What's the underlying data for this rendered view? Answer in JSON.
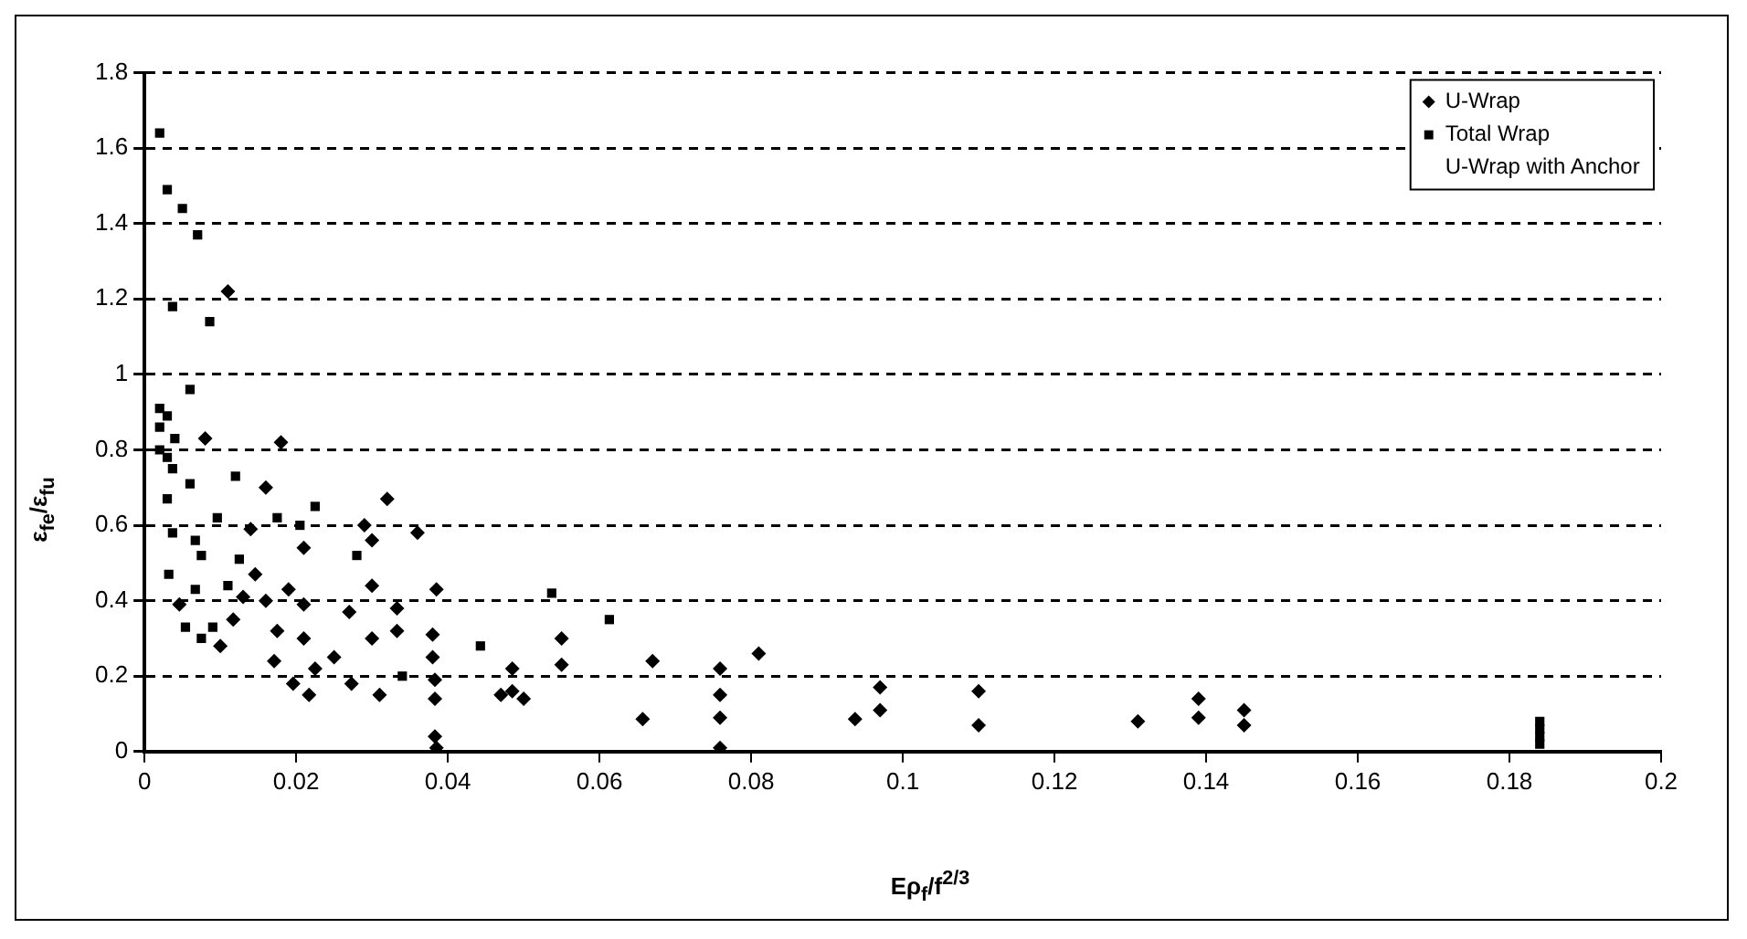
{
  "chart_data": {
    "type": "scatter",
    "xlabel": "Eρ$_{f}$/f$^{2/3}$",
    "ylabel": "ε$_{fe}$/ε$_{fu}$",
    "xlim": [
      0,
      0.2
    ],
    "xticks": [
      0,
      0.02,
      0.04,
      0.06,
      0.08,
      0.1,
      0.12,
      0.14,
      0.16,
      0.18,
      0.2
    ],
    "ylim": [
      0,
      1.8
    ],
    "yticks": [
      0,
      0.2,
      0.4,
      0.6,
      0.8,
      1,
      1.2,
      1.4,
      1.6,
      1.8
    ],
    "grid": "y",
    "legend": "top right",
    "series": [
      {
        "name": "U-Wrap",
        "color": "#000000",
        "marker": "diamond",
        "x": [
          0.011,
          0.008,
          0.018,
          0.016,
          0.014,
          0.021,
          0.029,
          0.03,
          0.032,
          0.036,
          0.0146,
          0.03,
          0.0385,
          0.013,
          0.016,
          0.019,
          0.021,
          0.0046,
          0.0117,
          0.01,
          0.0175,
          0.021,
          0.027,
          0.03,
          0.0333,
          0.0333,
          0.038,
          0.0171,
          0.0196,
          0.0217,
          0.0225,
          0.025,
          0.0273,
          0.031,
          0.038,
          0.0383,
          0.0383,
          0.0383,
          0.0385,
          0.0485,
          0.047,
          0.05,
          0.0485,
          0.055,
          0.055,
          0.067,
          0.0657,
          0.0759,
          0.0759,
          0.0759,
          0.0759,
          0.081,
          0.0937,
          0.097,
          0.097,
          0.11,
          0.11,
          0.131,
          0.139,
          0.139,
          0.145,
          0.145
        ],
        "values": [
          1.22,
          0.83,
          0.82,
          0.7,
          0.59,
          0.54,
          0.6,
          0.56,
          0.67,
          0.58,
          0.47,
          0.44,
          0.43,
          0.41,
          0.4,
          0.43,
          0.39,
          0.39,
          0.35,
          0.28,
          0.32,
          0.3,
          0.37,
          0.3,
          0.38,
          0.32,
          0.31,
          0.24,
          0.18,
          0.15,
          0.22,
          0.25,
          0.18,
          0.15,
          0.25,
          0.19,
          0.14,
          0.04,
          0.01,
          0.16,
          0.15,
          0.14,
          0.22,
          0.3,
          0.23,
          0.24,
          0.086,
          0.22,
          0.15,
          0.09,
          0.01,
          0.26,
          0.086,
          0.17,
          0.11,
          0.16,
          0.07,
          0.08,
          0.14,
          0.09,
          0.11,
          0.07
        ]
      },
      {
        "name": "Total Wrap",
        "color": "#000000",
        "marker": "square",
        "x": [
          0.002,
          0.003,
          0.005,
          0.007,
          0.0037,
          0.0086,
          0.006,
          0.002,
          0.003,
          0.002,
          0.004,
          0.002,
          0.003,
          0.0037,
          0.006,
          0.012,
          0.003,
          0.0037,
          0.0096,
          0.0175,
          0.0225,
          0.0205,
          0.0067,
          0.0075,
          0.0125,
          0.0032,
          0.028,
          0.0067,
          0.011,
          0.0054,
          0.0075,
          0.009,
          0.034,
          0.0443,
          0.0537,
          0.0613,
          0.184,
          0.184,
          0.184,
          0.184
        ],
        "values": [
          1.64,
          1.49,
          1.44,
          1.37,
          1.18,
          1.14,
          0.96,
          0.91,
          0.89,
          0.86,
          0.83,
          0.8,
          0.78,
          0.75,
          0.71,
          0.73,
          0.67,
          0.58,
          0.62,
          0.62,
          0.65,
          0.6,
          0.56,
          0.52,
          0.51,
          0.47,
          0.52,
          0.43,
          0.44,
          0.33,
          0.3,
          0.33,
          0.2,
          0.28,
          0.42,
          0.35,
          0.08,
          0.06,
          0.04,
          0.02
        ]
      },
      {
        "name": "U-Wrap with Anchor",
        "color": "#000000",
        "marker": "none"
      }
    ]
  }
}
